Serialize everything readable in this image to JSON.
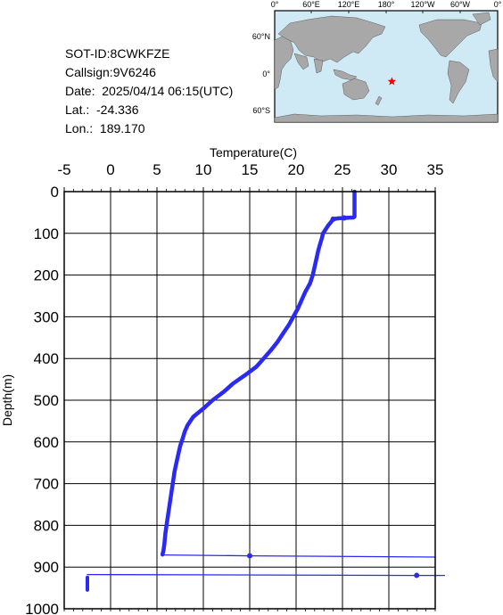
{
  "info": {
    "sot_id": "SOT-ID:8CWKFZE",
    "callsign": "Callsign:9V6246",
    "date": "Date:  2025/04/14 06:15(UTC)",
    "lat": "Lat.:  -24.336",
    "lon": "Lon.:  189.170"
  },
  "map": {
    "top_labels": [
      "0°",
      "60°E",
      "120°E",
      "180°",
      "120°W",
      "60°W",
      "0°"
    ],
    "left_labels": [
      "60°N",
      "0°",
      "60°S"
    ],
    "ocean_color": "#cfe9f5",
    "land_color": "#a8a8a8",
    "marker": {
      "lat": -24.336,
      "lon": 189.17,
      "color": "#ff0000",
      "icon": "red-star-icon"
    }
  },
  "chart_data": {
    "type": "line",
    "title": "",
    "xlabel": "Temperature(C)",
    "ylabel": "Depth(m)",
    "xlim": [
      -5,
      35
    ],
    "ylim": [
      0,
      1000
    ],
    "y_inverted": true,
    "x_ticks": [
      "-5",
      "0",
      "5",
      "10",
      "15",
      "20",
      "25",
      "30",
      "35"
    ],
    "y_ticks": [
      "0",
      "100",
      "200",
      "300",
      "400",
      "500",
      "600",
      "700",
      "800",
      "900",
      "1000"
    ],
    "grid": true,
    "series_color": "#2a2af0",
    "series": [
      {
        "name": "",
        "points": [
          [
            26.3,
            0
          ],
          [
            26.3,
            20
          ],
          [
            26.3,
            40
          ],
          [
            26.3,
            60
          ],
          [
            26.2,
            62
          ],
          [
            25.2,
            63
          ],
          [
            24.5,
            64
          ],
          [
            24.0,
            66
          ],
          [
            23.8,
            72
          ],
          [
            23.5,
            80
          ],
          [
            23.2,
            90
          ],
          [
            22.9,
            100
          ],
          [
            22.8,
            110
          ],
          [
            22.6,
            125
          ],
          [
            22.4,
            140
          ],
          [
            22.2,
            160
          ],
          [
            22.0,
            180
          ],
          [
            21.8,
            200
          ],
          [
            21.5,
            220
          ],
          [
            21.0,
            240
          ],
          [
            20.6,
            260
          ],
          [
            20.2,
            280
          ],
          [
            19.7,
            300
          ],
          [
            19.2,
            320
          ],
          [
            18.6,
            340
          ],
          [
            18.0,
            360
          ],
          [
            17.3,
            380
          ],
          [
            16.5,
            400
          ],
          [
            15.7,
            420
          ],
          [
            14.5,
            440
          ],
          [
            13.2,
            460
          ],
          [
            12.2,
            480
          ],
          [
            11.0,
            500
          ],
          [
            10.0,
            520
          ],
          [
            8.9,
            540
          ],
          [
            8.3,
            560
          ],
          [
            8.0,
            575
          ],
          [
            7.8,
            590
          ],
          [
            7.5,
            610
          ],
          [
            7.3,
            630
          ],
          [
            7.1,
            650
          ],
          [
            6.9,
            670
          ],
          [
            6.7,
            700
          ],
          [
            6.5,
            730
          ],
          [
            6.3,
            760
          ],
          [
            6.1,
            790
          ],
          [
            5.9,
            820
          ],
          [
            5.8,
            845
          ],
          [
            5.7,
            860
          ],
          [
            5.6,
            870
          ]
        ]
      },
      {
        "name": "",
        "points": [
          [
            5.6,
            871
          ],
          [
            15.0,
            873
          ],
          [
            35.0,
            876
          ]
        ]
      },
      {
        "name": "",
        "points": [
          [
            -2.5,
            918
          ],
          [
            33.0,
            920
          ],
          [
            36.0,
            920
          ]
        ]
      },
      {
        "name": "",
        "points": [
          [
            -2.5,
            925
          ],
          [
            -2.5,
            955
          ]
        ]
      }
    ],
    "markers": [
      [
        15.0,
        873
      ],
      [
        33.0,
        920
      ],
      [
        25.2,
        63
      ],
      [
        24.0,
        66
      ]
    ]
  }
}
